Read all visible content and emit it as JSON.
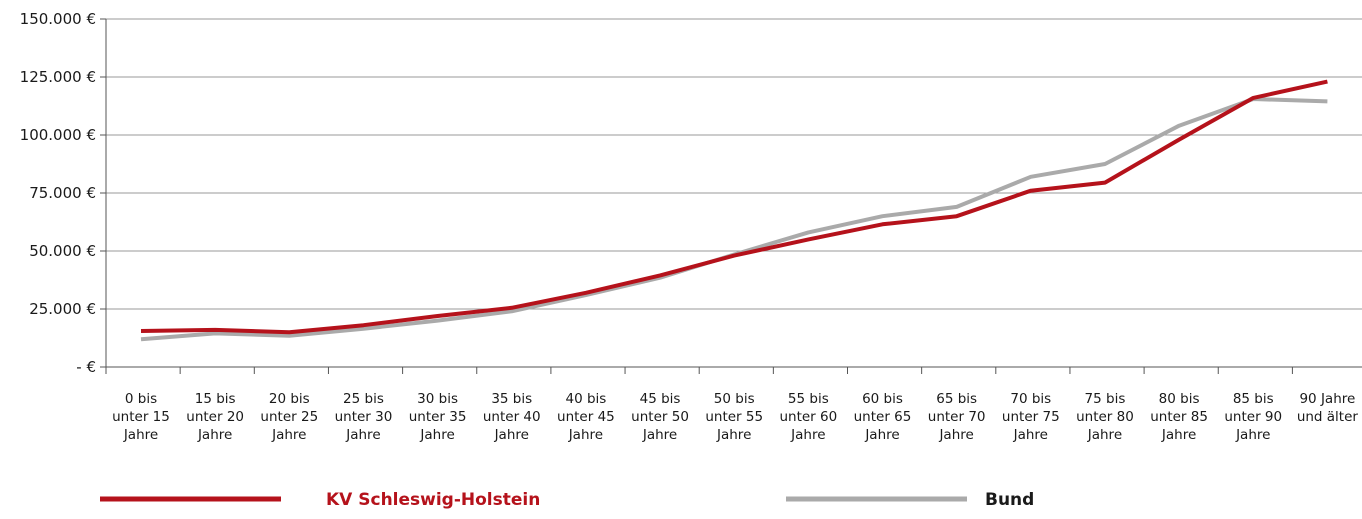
{
  "chart_data": {
    "type": "line",
    "title": "",
    "xlabel": "",
    "ylabel": "",
    "ylim": [
      0,
      150000
    ],
    "yticks": [
      0,
      25000,
      50000,
      75000,
      100000,
      125000,
      150000
    ],
    "ytick_labels": [
      "- €",
      "25.000 €",
      "50.000 €",
      "75.000 €",
      "100.000 €",
      "125.000 €",
      "150.000 €"
    ],
    "grid": true,
    "legend_position": "bottom",
    "categories": [
      [
        "0 bis",
        "unter 15",
        "Jahre"
      ],
      [
        "15 bis",
        "unter 20",
        "Jahre"
      ],
      [
        "20 bis",
        "unter 25",
        "Jahre"
      ],
      [
        "25 bis",
        "unter 30",
        "Jahre"
      ],
      [
        "30 bis",
        "unter 35",
        "Jahre"
      ],
      [
        "35 bis",
        "unter 40",
        "Jahre"
      ],
      [
        "40 bis",
        "unter 45",
        "Jahre"
      ],
      [
        "45 bis",
        "unter 50",
        "Jahre"
      ],
      [
        "50 bis",
        "unter 55",
        "Jahre"
      ],
      [
        "55 bis",
        "unter 60",
        "Jahre"
      ],
      [
        "60 bis",
        "unter 65",
        "Jahre"
      ],
      [
        "65 bis",
        "unter 70",
        "Jahre"
      ],
      [
        "70 bis",
        "unter 75",
        "Jahre"
      ],
      [
        "75 bis",
        "unter 80",
        "Jahre"
      ],
      [
        "80 bis",
        "unter 85",
        "Jahre"
      ],
      [
        "85 bis",
        "unter 90",
        "Jahre"
      ],
      [
        "90 Jahre",
        "und älter"
      ]
    ],
    "series": [
      {
        "name": "KV Schleswig-Holstein",
        "color": "#b5121b",
        "values": [
          15500,
          16000,
          15000,
          18000,
          22000,
          25500,
          32000,
          39500,
          48000,
          55000,
          61500,
          65000,
          76000,
          79500,
          98000,
          116000,
          123000
        ]
      },
      {
        "name": "Bund",
        "color": "#aaaaaa",
        "values": [
          12000,
          14500,
          13500,
          16500,
          20000,
          24000,
          31000,
          38500,
          48500,
          58000,
          65000,
          69000,
          82000,
          87500,
          104000,
          115500,
          114500
        ]
      }
    ]
  }
}
